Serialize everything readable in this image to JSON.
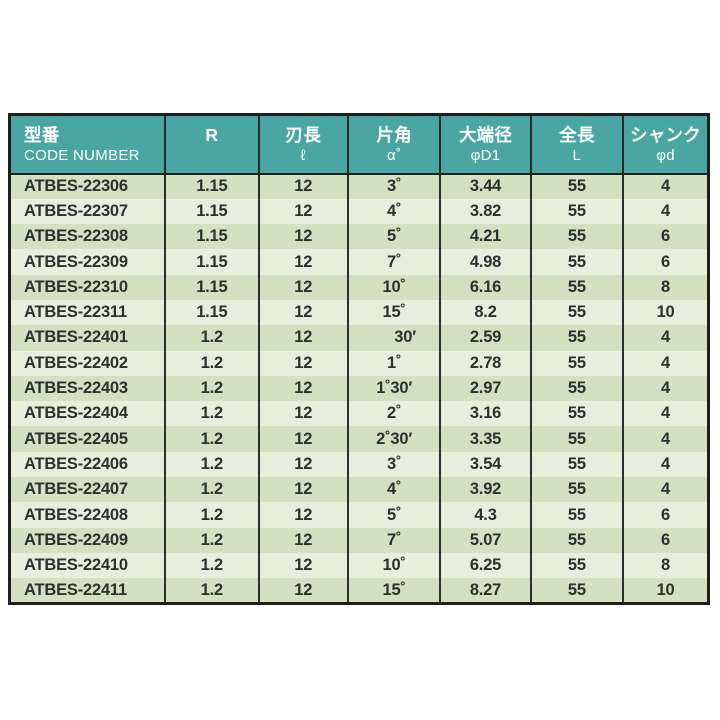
{
  "table": {
    "colors": {
      "header_bg": "#4aa6a0",
      "header_text": "#ffffff",
      "row_odd_bg": "#d5dfc1",
      "row_even_bg": "#e9eedc",
      "body_text": "#2d302c",
      "border_dark": "#1e1f1e"
    },
    "columns": [
      {
        "title": "型番",
        "subtitle": "CODE NUMBER"
      },
      {
        "title": "R",
        "subtitle": ""
      },
      {
        "title": "刃長",
        "subtitle": "ℓ"
      },
      {
        "title": "片角",
        "subtitle": "α˚"
      },
      {
        "title": "大端径",
        "subtitle": "φD1"
      },
      {
        "title": "全長",
        "subtitle": "L"
      },
      {
        "title": "シャンク",
        "subtitle": "φd"
      }
    ],
    "rows": [
      [
        "ATBES-22306",
        "1.15",
        "12",
        "3˚",
        "3.44",
        "55",
        "4"
      ],
      [
        "ATBES-22307",
        "1.15",
        "12",
        "4˚",
        "3.82",
        "55",
        "4"
      ],
      [
        "ATBES-22308",
        "1.15",
        "12",
        "5˚",
        "4.21",
        "55",
        "6"
      ],
      [
        "ATBES-22309",
        "1.15",
        "12",
        "7˚",
        "4.98",
        "55",
        "6"
      ],
      [
        "ATBES-22310",
        "1.15",
        "12",
        "10˚",
        "6.16",
        "55",
        "8"
      ],
      [
        "ATBES-22311",
        "1.15",
        "12",
        "15˚",
        "8.2",
        "55",
        "10"
      ],
      [
        "ATBES-22401",
        "1.2",
        "12",
        "30′",
        "2.59",
        "55",
        "4"
      ],
      [
        "ATBES-22402",
        "1.2",
        "12",
        "1˚",
        "2.78",
        "55",
        "4"
      ],
      [
        "ATBES-22403",
        "1.2",
        "12",
        "1˚30′",
        "2.97",
        "55",
        "4"
      ],
      [
        "ATBES-22404",
        "1.2",
        "12",
        "2˚",
        "3.16",
        "55",
        "4"
      ],
      [
        "ATBES-22405",
        "1.2",
        "12",
        "2˚30′",
        "3.35",
        "55",
        "4"
      ],
      [
        "ATBES-22406",
        "1.2",
        "12",
        "3˚",
        "3.54",
        "55",
        "4"
      ],
      [
        "ATBES-22407",
        "1.2",
        "12",
        "4˚",
        "3.92",
        "55",
        "4"
      ],
      [
        "ATBES-22408",
        "1.2",
        "12",
        "5˚",
        "4.3",
        "55",
        "6"
      ],
      [
        "ATBES-22409",
        "1.2",
        "12",
        "7˚",
        "5.07",
        "55",
        "6"
      ],
      [
        "ATBES-22410",
        "1.2",
        "12",
        "10˚",
        "6.25",
        "55",
        "8"
      ],
      [
        "ATBES-22411",
        "1.2",
        "12",
        "15˚",
        "8.27",
        "55",
        "10"
      ]
    ]
  }
}
